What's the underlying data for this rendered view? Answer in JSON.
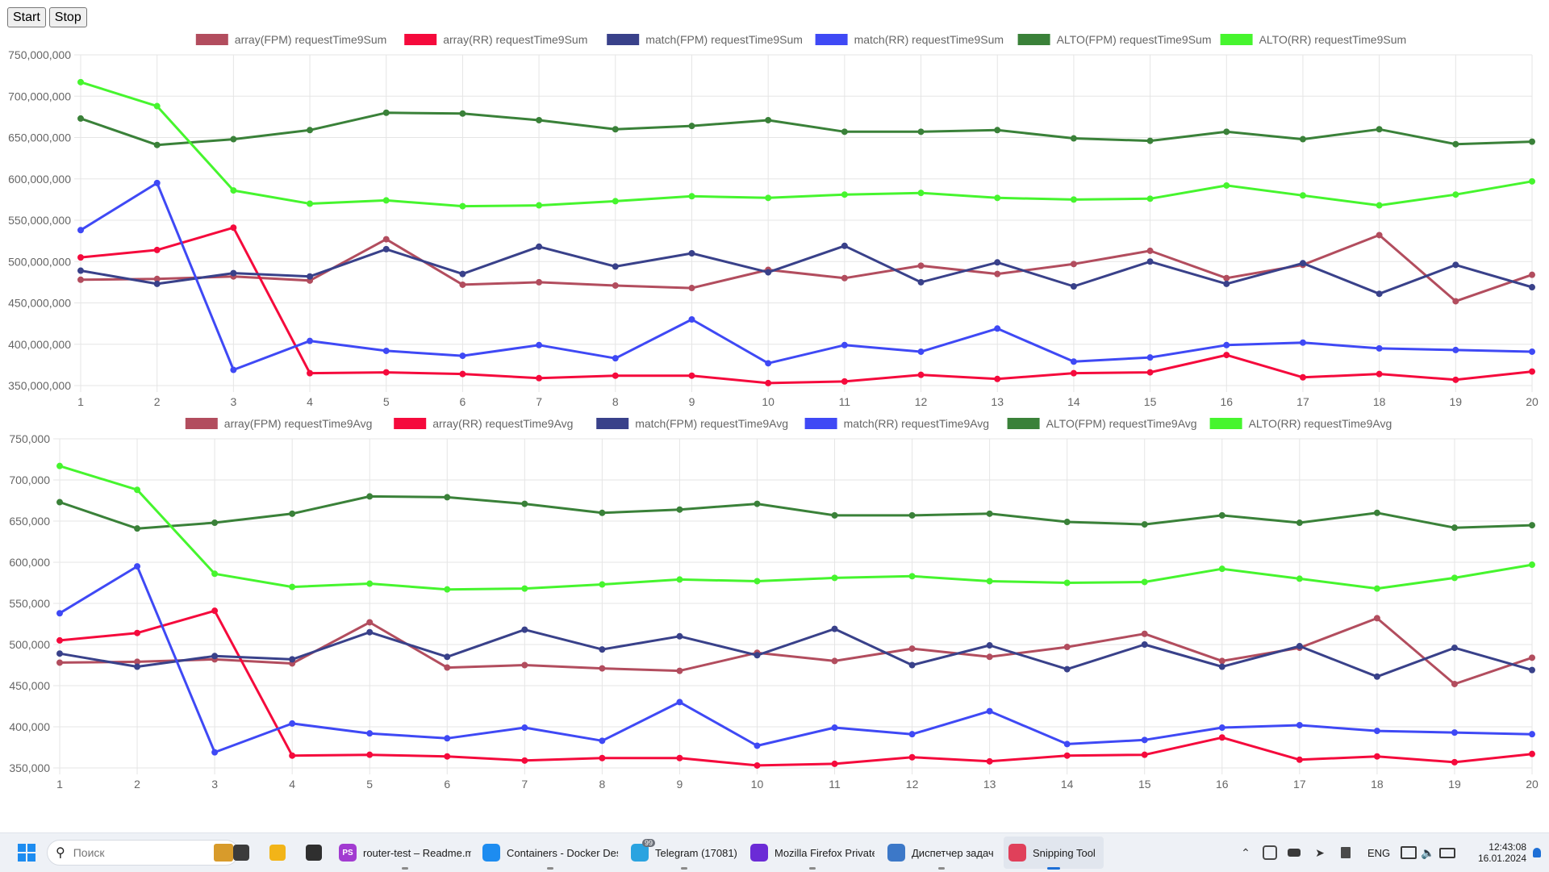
{
  "controls": {
    "start_label": "Start",
    "stop_label": "Stop"
  },
  "colors": {
    "array_fpm": "#b24d5e",
    "array_rr": "#f50a3c",
    "match_fpm": "#39418a",
    "match_rr": "#3f49f5",
    "alto_fpm": "#3a8139",
    "alto_rr": "#46f52e",
    "grid": "#e5e5e5",
    "tick": "#666666"
  },
  "chart_data": [
    {
      "type": "line",
      "title": "",
      "xlabel": "",
      "ylabel": "",
      "legend_position": "top",
      "grid": true,
      "x": [
        1,
        2,
        3,
        4,
        5,
        6,
        7,
        8,
        9,
        10,
        11,
        12,
        13,
        14,
        15,
        16,
        17,
        18,
        19,
        20
      ],
      "ylim": [
        350000000,
        750000000
      ],
      "y_ticks": [
        350000000,
        400000000,
        450000000,
        500000000,
        550000000,
        600000000,
        650000000,
        700000000,
        750000000
      ],
      "y_tick_labels": [
        "350,000,000",
        "400,000,000",
        "450,000,000",
        "500,000,000",
        "550,000,000",
        "600,000,000",
        "650,000,000",
        "700,000,000",
        "750,000,000"
      ],
      "series": [
        {
          "name": "array(FPM) requestTime9Sum",
          "color_key": "array_fpm",
          "values": [
            478000000,
            479000000,
            482000000,
            477000000,
            527000000,
            472000000,
            475000000,
            471000000,
            468000000,
            490000000,
            480000000,
            495000000,
            485000000,
            497000000,
            513000000,
            480000000,
            496000000,
            532000000,
            452000000,
            484000000
          ]
        },
        {
          "name": "array(RR) requestTime9Sum",
          "color_key": "array_rr",
          "values": [
            505000000,
            514000000,
            541000000,
            365000000,
            366000000,
            364000000,
            359000000,
            362000000,
            362000000,
            353000000,
            355000000,
            363000000,
            358000000,
            365000000,
            366000000,
            387000000,
            360000000,
            364000000,
            357000000,
            367000000
          ]
        },
        {
          "name": "match(FPM) requestTime9Sum",
          "color_key": "match_fpm",
          "values": [
            489000000,
            473000000,
            486000000,
            482000000,
            515000000,
            485000000,
            518000000,
            494000000,
            510000000,
            487000000,
            519000000,
            475000000,
            499000000,
            470000000,
            500000000,
            473000000,
            498000000,
            461000000,
            496000000,
            469000000
          ]
        },
        {
          "name": "match(RR) requestTime9Sum",
          "color_key": "match_rr",
          "values": [
            538000000,
            595000000,
            369000000,
            404000000,
            392000000,
            386000000,
            399000000,
            383000000,
            430000000,
            377000000,
            399000000,
            391000000,
            419000000,
            379000000,
            384000000,
            399000000,
            402000000,
            395000000,
            393000000,
            391000000
          ]
        },
        {
          "name": "ALTO(FPM) requestTime9Sum",
          "color_key": "alto_fpm",
          "values": [
            673000000,
            641000000,
            648000000,
            659000000,
            680000000,
            679000000,
            671000000,
            660000000,
            664000000,
            671000000,
            657000000,
            657000000,
            659000000,
            649000000,
            646000000,
            657000000,
            648000000,
            660000000,
            642000000,
            645000000
          ]
        },
        {
          "name": "ALTO(RR) requestTime9Sum",
          "color_key": "alto_rr",
          "values": [
            717000000,
            688000000,
            586000000,
            570000000,
            574000000,
            567000000,
            568000000,
            573000000,
            579000000,
            577000000,
            581000000,
            583000000,
            577000000,
            575000000,
            576000000,
            592000000,
            580000000,
            568000000,
            581000000,
            597000000
          ]
        }
      ]
    },
    {
      "type": "line",
      "title": "",
      "xlabel": "",
      "ylabel": "",
      "legend_position": "top",
      "grid": true,
      "x": [
        1,
        2,
        3,
        4,
        5,
        6,
        7,
        8,
        9,
        10,
        11,
        12,
        13,
        14,
        15,
        16,
        17,
        18,
        19,
        20
      ],
      "ylim": [
        350000,
        750000
      ],
      "y_ticks": [
        350000,
        400000,
        450000,
        500000,
        550000,
        600000,
        650000,
        700000,
        750000
      ],
      "y_tick_labels": [
        "350,000",
        "400,000",
        "450,000",
        "500,000",
        "550,000",
        "600,000",
        "650,000",
        "700,000",
        "750,000"
      ],
      "series": [
        {
          "name": "array(FPM) requestTime9Avg",
          "color_key": "array_fpm",
          "values": [
            478000,
            479000,
            482000,
            477000,
            527000,
            472000,
            475000,
            471000,
            468000,
            490000,
            480000,
            495000,
            485000,
            497000,
            513000,
            480000,
            496000,
            532000,
            452000,
            484000
          ]
        },
        {
          "name": "array(RR) requestTime9Avg",
          "color_key": "array_rr",
          "values": [
            505000,
            514000,
            541000,
            365000,
            366000,
            364000,
            359000,
            362000,
            362000,
            353000,
            355000,
            363000,
            358000,
            365000,
            366000,
            387000,
            360000,
            364000,
            357000,
            367000
          ]
        },
        {
          "name": "match(FPM) requestTime9Avg",
          "color_key": "match_fpm",
          "values": [
            489000,
            473000,
            486000,
            482000,
            515000,
            485000,
            518000,
            494000,
            510000,
            487000,
            519000,
            475000,
            499000,
            470000,
            500000,
            473000,
            498000,
            461000,
            496000,
            469000
          ]
        },
        {
          "name": "match(RR) requestTime9Avg",
          "color_key": "match_rr",
          "values": [
            538000,
            595000,
            369000,
            404000,
            392000,
            386000,
            399000,
            383000,
            430000,
            377000,
            399000,
            391000,
            419000,
            379000,
            384000,
            399000,
            402000,
            395000,
            393000,
            391000
          ]
        },
        {
          "name": "ALTO(FPM) requestTime9Avg",
          "color_key": "alto_fpm",
          "values": [
            673000,
            641000,
            648000,
            659000,
            680000,
            679000,
            671000,
            660000,
            664000,
            671000,
            657000,
            657000,
            659000,
            649000,
            646000,
            657000,
            648000,
            660000,
            642000,
            645000
          ]
        },
        {
          "name": "ALTO(RR) requestTime9Avg",
          "color_key": "alto_rr",
          "values": [
            717000,
            688000,
            586000,
            570000,
            574000,
            567000,
            568000,
            573000,
            579000,
            577000,
            581000,
            583000,
            577000,
            575000,
            576000,
            592000,
            580000,
            568000,
            581000,
            597000
          ]
        }
      ]
    }
  ],
  "taskbar": {
    "search_placeholder": "Поиск",
    "pinned": [
      {
        "name": "task-view-icon",
        "color": "#3b3b3b"
      },
      {
        "name": "file-explorer-icon",
        "color": "#f2b418"
      },
      {
        "name": "terminal-icon",
        "color": "#2f2f2f"
      }
    ],
    "apps": [
      {
        "name": "app-phpstorm",
        "icon": "phpstorm-icon",
        "label": "router-test – Readme.m",
        "color": "#a23bd1",
        "glyph": "PS",
        "badge": ""
      },
      {
        "name": "app-docker",
        "icon": "docker-icon",
        "label": "Containers - Docker Des",
        "color": "#1d8cf0",
        "glyph": "",
        "badge": ""
      },
      {
        "name": "app-telegram",
        "icon": "telegram-icon",
        "label": "Telegram (17081)",
        "color": "#2aa3e0",
        "glyph": "",
        "badge": "99"
      },
      {
        "name": "app-firefox-private",
        "icon": "firefox-private-icon",
        "label": "Mozilla Firefox Private B",
        "color": "#6b2bd6",
        "glyph": "",
        "badge": ""
      },
      {
        "name": "app-task-manager",
        "icon": "task-manager-icon",
        "label": "Диспетчер задач",
        "color": "#3c78c8",
        "glyph": "",
        "badge": ""
      },
      {
        "name": "app-snipping-tool",
        "icon": "snipping-tool-icon",
        "label": "Snipping Tool",
        "color": "#e0405a",
        "glyph": "",
        "badge": ""
      }
    ],
    "language": "ENG",
    "time": "12:43:08",
    "date": "16.01.2024"
  }
}
